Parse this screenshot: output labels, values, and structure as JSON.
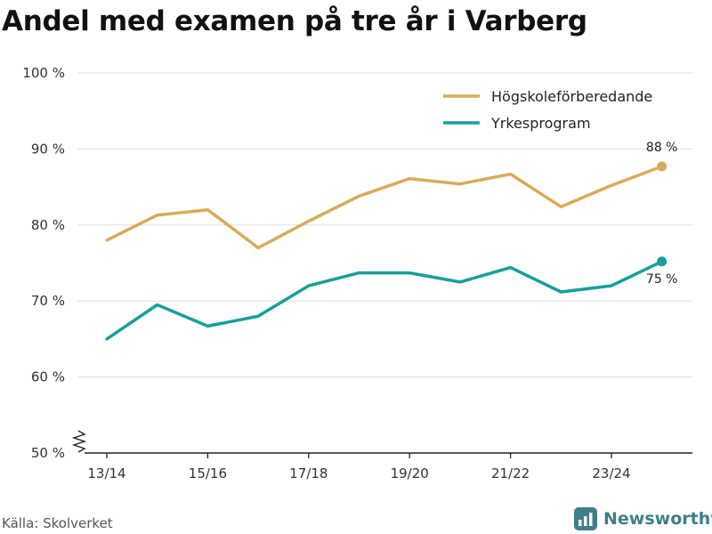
{
  "colors": {
    "background": "#ffffff",
    "series_a": "#d8ab5a",
    "series_b": "#16a098",
    "grid": "#dddddd",
    "axis": "#222222",
    "brand": "#3f7f89"
  },
  "source": "Källa: Skolverket",
  "brand": {
    "name": "Newsworthy",
    "icon": "newsworthy-logo-icon"
  },
  "chart_data": {
    "type": "line",
    "title": "Andel med examen på tre år i Varberg",
    "xlabel": "",
    "ylabel": "",
    "categories": [
      "13/14",
      "14/15",
      "15/16",
      "16/17",
      "17/18",
      "18/19",
      "19/20",
      "20/21",
      "21/22",
      "22/23",
      "23/24",
      "24/25"
    ],
    "x_tick_labels": [
      "13/14",
      "15/16",
      "17/18",
      "19/20",
      "21/22",
      "23/24"
    ],
    "y_ticks": [
      50,
      60,
      70,
      80,
      90,
      100
    ],
    "y_tick_labels": [
      "50 %",
      "60 %",
      "70 %",
      "80 %",
      "90 %",
      "100 %"
    ],
    "ylim": [
      50,
      100
    ],
    "grid": true,
    "legend_position": "top-right",
    "series": [
      {
        "name": "Högskoleförberedande",
        "values": [
          78,
          81.3,
          82,
          77,
          80.5,
          83.8,
          86.1,
          85.4,
          86.7,
          82.4,
          85.2,
          87.7
        ],
        "end_label": "88 %",
        "end_label_position": "above"
      },
      {
        "name": "Yrkesprogram",
        "values": [
          65,
          69.5,
          66.7,
          68,
          72,
          73.7,
          73.7,
          72.5,
          74.4,
          71.2,
          72,
          75.2
        ],
        "end_label": "75 %",
        "end_label_position": "below"
      }
    ]
  }
}
